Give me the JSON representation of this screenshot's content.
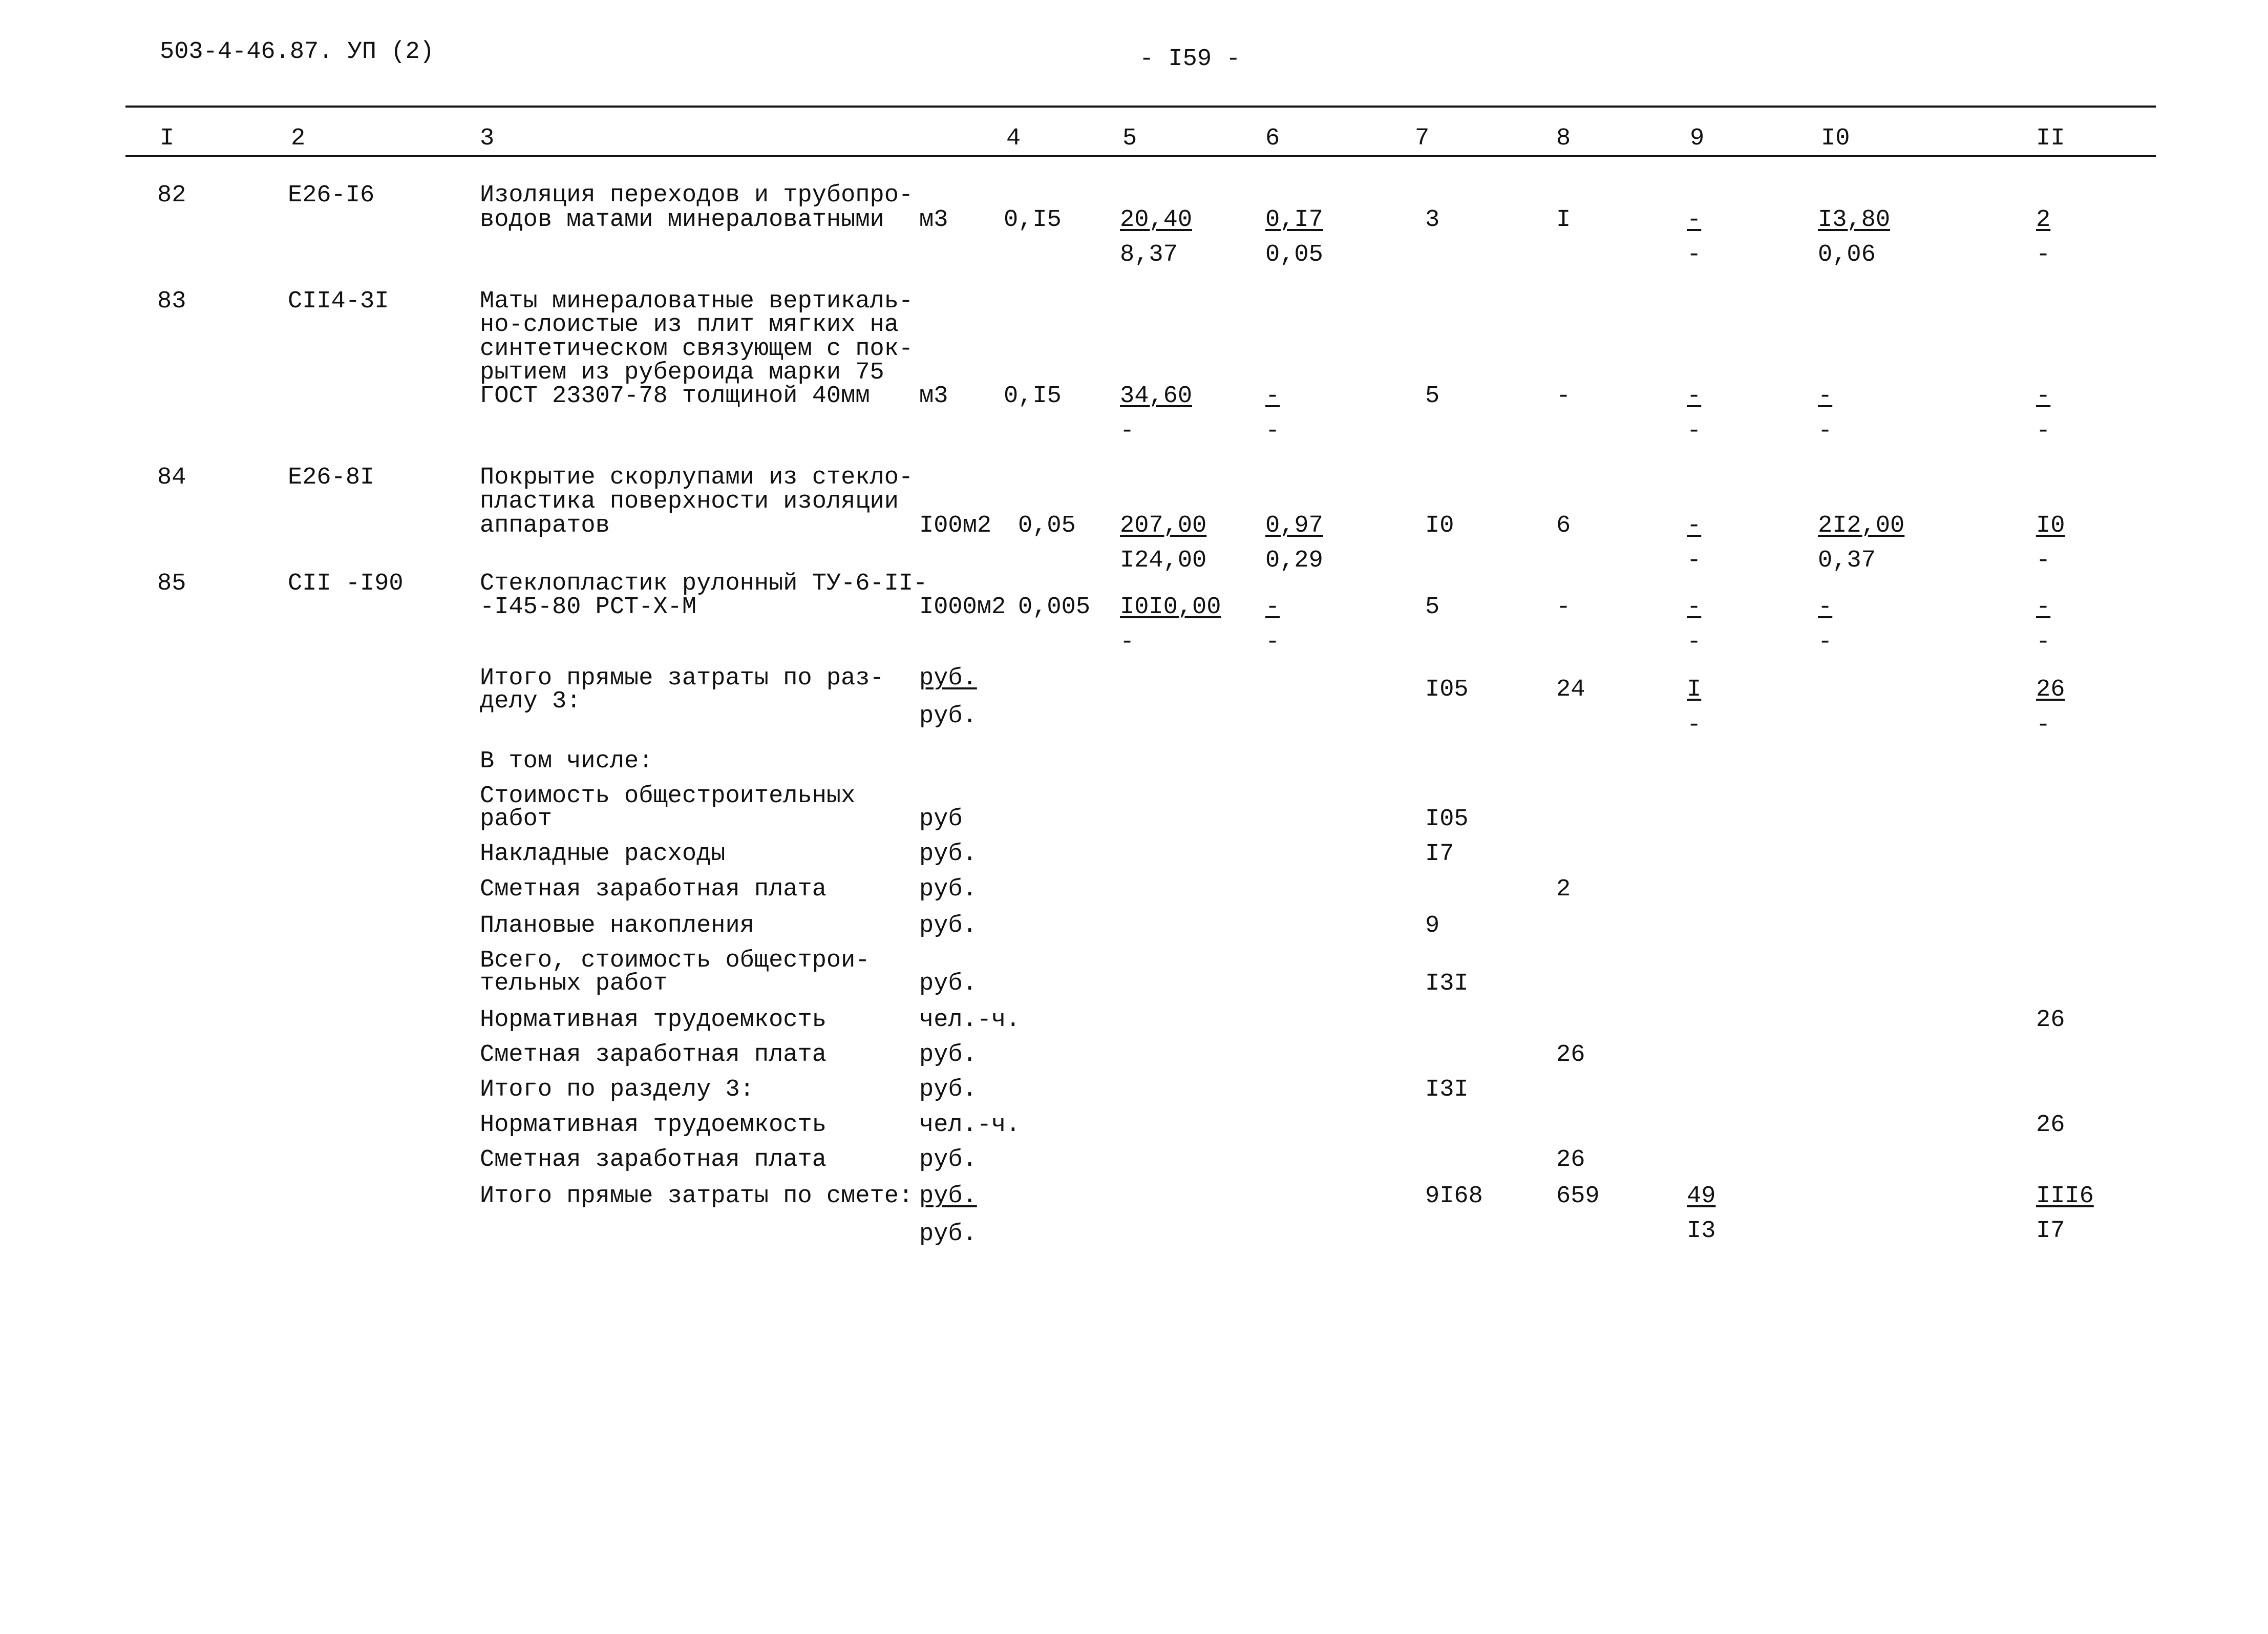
{
  "doc_code": "503-4-46.87. УП (2)",
  "page_number": "- I59 -",
  "header": [
    "I",
    "2",
    "3",
    "4",
    "5",
    "6",
    "7",
    "8",
    "9",
    "I0",
    "II"
  ],
  "rows": [
    {
      "num": "82",
      "code": "Е26-I6",
      "desc": [
        "Изоляция переходов и трубопро-",
        "водов матами минераловатными"
      ],
      "unit": "м3",
      "qty": "0,I5",
      "c5": {
        "top": "20,40",
        "bottom": "8,37"
      },
      "c6": {
        "top": "0,I7",
        "bottom": "0,05"
      },
      "c7": "3",
      "c8": "I",
      "c9": {
        "top": "-",
        "bottom": "-"
      },
      "c10": {
        "top": "I3,80",
        "bottom": "0,06"
      },
      "c11": {
        "top": "2",
        "bottom": "-"
      }
    },
    {
      "num": "83",
      "code": "СII4-3I",
      "desc": [
        "Маты минераловатные вертикаль-",
        "но-слоистые из плит мягких на",
        "синтетическом связующем с пок-",
        "рытием из рубероида марки 75",
        "ГОСТ 23307-78 толщиной 40мм"
      ],
      "unit": "м3",
      "qty": "0,I5",
      "c5": {
        "top": "34,60",
        "bottom": "-"
      },
      "c6": {
        "top": "-",
        "bottom": "-"
      },
      "c7": "5",
      "c8": "-",
      "c9": {
        "top": "-",
        "bottom": "-"
      },
      "c10": {
        "top": "-",
        "bottom": "-"
      },
      "c11": {
        "top": "-",
        "bottom": "-"
      }
    },
    {
      "num": "84",
      "code": "Е26-8I",
      "desc": [
        "Покрытие скорлупами из стекло-",
        "пластика поверхности изоляции",
        "аппаратов"
      ],
      "unit": "I00м2",
      "qty": "0,05",
      "c5": {
        "top": "207,00",
        "bottom": "I24,00"
      },
      "c6": {
        "top": "0,97",
        "bottom": "0,29"
      },
      "c7": "I0",
      "c8": "6",
      "c9": {
        "top": "-",
        "bottom": "-"
      },
      "c10": {
        "top": "2I2,00",
        "bottom": "0,37"
      },
      "c11": {
        "top": "I0",
        "bottom": "-"
      }
    },
    {
      "num": "85",
      "code": "СII -I90",
      "desc": [
        "Стеклопластик рулонный ТУ-6-II-",
        "-I45-80 РСТ-Х-М"
      ],
      "unit": "I000м2",
      "qty": "0,005",
      "c5": {
        "top": "I0I0,00",
        "bottom": "-"
      },
      "c6": {
        "top": "-",
        "bottom": "-"
      },
      "c7": "5",
      "c8": "-",
      "c9": {
        "top": "-",
        "bottom": "-"
      },
      "c10": {
        "top": "-",
        "bottom": "-"
      },
      "c11": {
        "top": "-",
        "bottom": "-"
      }
    }
  ],
  "summary": [
    {
      "label": [
        "Итого прямые затраты по раз-",
        "делу 3:"
      ],
      "unit": "руб.",
      "unit2": "руб.",
      "c7": "I05",
      "c8": "24",
      "c9": {
        "top": "I",
        "bottom": "-"
      },
      "c11": {
        "top": "26",
        "bottom": "-"
      }
    },
    {
      "label": [
        "В том числе:"
      ]
    },
    {
      "label": [
        "Стоимость общестроительных",
        "работ"
      ],
      "unit": "руб",
      "c7": "I05"
    },
    {
      "label": [
        "Накладные расходы"
      ],
      "unit": "руб.",
      "c7": "I7"
    },
    {
      "label": [
        "Сметная заработная плата"
      ],
      "unit": "руб.",
      "c8": "2"
    },
    {
      "label": [
        "Плановые накопления"
      ],
      "unit": "руб.",
      "c7": "9"
    },
    {
      "label": [
        "Всего, стоимость общестрои-",
        "тельных работ"
      ],
      "unit": "руб.",
      "c7": "I3I"
    },
    {
      "label": [
        "Нормативная трудоемкость"
      ],
      "unit": "чел.-ч.",
      "c11": "26"
    },
    {
      "label": [
        "Сметная заработная плата"
      ],
      "unit": "руб.",
      "c8": "26"
    },
    {
      "label": [
        "Итого по разделу 3:"
      ],
      "unit": "руб.",
      "c7": "I3I"
    },
    {
      "label": [
        "Нормативная трудоемкость"
      ],
      "unit": "чел.-ч.",
      "c11": "26"
    },
    {
      "label": [
        "Сметная заработная плата"
      ],
      "unit": "руб.",
      "c8": "26"
    },
    {
      "label": [
        "Итого прямые затраты по смете:"
      ],
      "unit": "руб.",
      "unit2": "руб.",
      "c7": "9I68",
      "c8": "659",
      "c9": {
        "top": "49",
        "bottom": "I3"
      },
      "c11": {
        "top": "III6",
        "bottom": "I7"
      }
    }
  ]
}
